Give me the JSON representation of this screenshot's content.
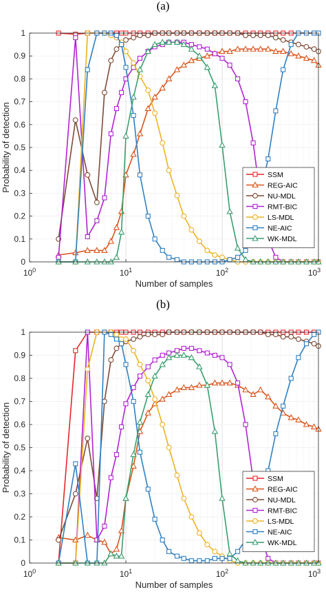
{
  "chart_data": [
    {
      "panel_label": "(a)",
      "type": "line",
      "xlabel": "Number of samples",
      "ylabel": "Probability of detection",
      "xscale": "log",
      "xlim": [
        1,
        1000
      ],
      "ylim": [
        0,
        1
      ],
      "x_ticks": [
        {
          "base": "10",
          "exp": "0"
        },
        {
          "base": "10",
          "exp": "1"
        },
        {
          "base": "10",
          "exp": "2"
        },
        {
          "base": "10",
          "exp": "3"
        }
      ],
      "y_ticks": [
        "0",
        "0.1",
        "0.2",
        "0.3",
        "0.4",
        "0.5",
        "0.6",
        "0.7",
        "0.8",
        "0.9",
        "1"
      ],
      "grid": true,
      "legend_position": "lower-right",
      "x": [
        2,
        3,
        4,
        5,
        6,
        7,
        8,
        9,
        10,
        12,
        14,
        17,
        20,
        24,
        28,
        34,
        40,
        48,
        58,
        70,
        84,
        100,
        120,
        145,
        175,
        210,
        250,
        300,
        360,
        430,
        520,
        620,
        750,
        900,
        1000
      ],
      "series": [
        {
          "name": "SSM",
          "color": "#e8232b",
          "marker": "square",
          "values": [
            1,
            0.995,
            1,
            1,
            1,
            1,
            1,
            1,
            1,
            1,
            1,
            1,
            1,
            1,
            1,
            1,
            1,
            1,
            1,
            1,
            1,
            1,
            1,
            1,
            1,
            1,
            1,
            1,
            1,
            1,
            1,
            1,
            1,
            1,
            1
          ]
        },
        {
          "name": "REG-AIC",
          "color": "#d95319",
          "marker": "triangle",
          "values": [
            0.03,
            0.04,
            0.05,
            0.05,
            0.05,
            0.09,
            0.15,
            0.22,
            0.38,
            0.47,
            0.56,
            0.67,
            0.72,
            0.76,
            0.8,
            0.84,
            0.86,
            0.88,
            0.89,
            0.9,
            0.91,
            0.92,
            0.92,
            0.93,
            0.93,
            0.93,
            0.93,
            0.93,
            0.92,
            0.92,
            0.91,
            0.9,
            0.89,
            0.88,
            0.86
          ]
        },
        {
          "name": "NU-MDL",
          "color": "#7e4a35",
          "marker": "circle",
          "values": [
            0.1,
            0.62,
            0.38,
            0.26,
            0.74,
            0.88,
            0.93,
            0.95,
            0.97,
            0.98,
            0.99,
            0.99,
            1,
            1,
            1,
            1,
            1,
            1,
            1,
            1,
            1,
            1,
            1,
            1,
            0.99,
            0.99,
            0.99,
            0.99,
            0.98,
            0.97,
            0.96,
            0.95,
            0.94,
            0.93,
            0.92
          ]
        },
        {
          "name": "RMT-BIC",
          "color": "#b022d1",
          "marker": "square",
          "values": [
            0.02,
            0.98,
            0.11,
            0.18,
            0.28,
            0.56,
            0.67,
            0.74,
            0.8,
            0.85,
            0.89,
            0.92,
            0.94,
            0.95,
            0.96,
            0.96,
            0.96,
            0.95,
            0.94,
            0.93,
            0.91,
            0.89,
            0.86,
            0.8,
            0.7,
            0.52,
            0.28,
            0.1,
            0.02,
            0,
            0,
            0,
            0,
            0,
            0
          ]
        },
        {
          "name": "LS-MDL",
          "color": "#edb120",
          "marker": "circle",
          "values": [
            0,
            0,
            1,
            1,
            1,
            0.99,
            0.98,
            0.96,
            0.92,
            0.87,
            0.81,
            0.75,
            0.65,
            0.52,
            0.4,
            0.29,
            0.2,
            0.14,
            0.09,
            0.05,
            0.03,
            0.02,
            0.01,
            0,
            0,
            0,
            0,
            0,
            0,
            0,
            0,
            0,
            0,
            0,
            0
          ]
        },
        {
          "name": "NE-AIC",
          "color": "#2f7fc1",
          "marker": "square",
          "values": [
            0,
            0,
            0.84,
            1,
            1,
            1,
            0.99,
            0.95,
            0.85,
            0.64,
            0.38,
            0.2,
            0.1,
            0.05,
            0.02,
            0.01,
            0,
            0,
            0,
            0,
            0,
            0,
            0.01,
            0.02,
            0.05,
            0.12,
            0.3,
            0.45,
            0.66,
            0.84,
            0.95,
            1,
            1,
            1,
            1
          ]
        },
        {
          "name": "WK-MDL",
          "color": "#3a9e6e",
          "marker": "triangle",
          "values": [
            0,
            0,
            0,
            0,
            0,
            0,
            0.02,
            0.13,
            0.55,
            0.72,
            0.84,
            0.92,
            0.95,
            0.96,
            0.96,
            0.96,
            0.95,
            0.93,
            0.9,
            0.85,
            0.77,
            0.51,
            0.22,
            0.06,
            0.01,
            0,
            0,
            0,
            0,
            0,
            0,
            0,
            0,
            0,
            0
          ]
        }
      ]
    },
    {
      "panel_label": "(b)",
      "type": "line",
      "xlabel": "Number of samples",
      "ylabel": "Probability of detection",
      "xscale": "log",
      "xlim": [
        1,
        1000
      ],
      "ylim": [
        0,
        1
      ],
      "x_ticks": [
        {
          "base": "10",
          "exp": "0"
        },
        {
          "base": "10",
          "exp": "1"
        },
        {
          "base": "10",
          "exp": "2"
        },
        {
          "base": "10",
          "exp": "3"
        }
      ],
      "y_ticks": [
        "0",
        "0.1",
        "0.2",
        "0.3",
        "0.4",
        "0.5",
        "0.6",
        "0.7",
        "0.8",
        "0.9",
        "1"
      ],
      "grid": true,
      "legend_position": "lower-right",
      "x": [
        2,
        3,
        4,
        5,
        6,
        7,
        8,
        9,
        10,
        12,
        14,
        17,
        20,
        24,
        28,
        34,
        40,
        48,
        58,
        70,
        84,
        100,
        120,
        145,
        175,
        210,
        250,
        300,
        360,
        430,
        520,
        620,
        750,
        900,
        1000
      ],
      "series": [
        {
          "name": "SSM",
          "color": "#e8232b",
          "marker": "square",
          "values": [
            0,
            0.92,
            1,
            1,
            1,
            1,
            1,
            1,
            1,
            1,
            1,
            1,
            1,
            1,
            1,
            1,
            1,
            1,
            1,
            1,
            1,
            1,
            1,
            1,
            1,
            1,
            1,
            1,
            1,
            1,
            1,
            1,
            1,
            1,
            1
          ]
        },
        {
          "name": "REG-AIC",
          "color": "#d95319",
          "marker": "triangle",
          "values": [
            0.11,
            0.1,
            0.12,
            0.1,
            0.09,
            0.04,
            0.06,
            0.14,
            0.28,
            0.42,
            0.57,
            0.65,
            0.69,
            0.71,
            0.73,
            0.75,
            0.76,
            0.76,
            0.77,
            0.77,
            0.78,
            0.78,
            0.78,
            0.77,
            0.75,
            0.73,
            0.75,
            0.72,
            0.68,
            0.65,
            0.63,
            0.62,
            0.6,
            0.59,
            0.58
          ]
        },
        {
          "name": "NU-MDL",
          "color": "#7e4a35",
          "marker": "circle",
          "values": [
            0.1,
            0.3,
            0.54,
            0.28,
            0.7,
            0.88,
            0.93,
            0.95,
            0.96,
            0.97,
            0.98,
            0.99,
            0.99,
            0.99,
            1,
            1,
            1,
            1,
            1,
            1,
            1,
            1,
            1,
            1,
            1,
            1,
            1,
            0.99,
            0.99,
            0.98,
            0.98,
            0.97,
            0.96,
            0.95,
            0.94
          ]
        },
        {
          "name": "RMT-BIC",
          "color": "#b022d1",
          "marker": "square",
          "values": [
            0,
            0,
            1,
            0.1,
            0.16,
            0.37,
            0.47,
            0.59,
            0.69,
            0.76,
            0.81,
            0.85,
            0.88,
            0.9,
            0.91,
            0.92,
            0.93,
            0.93,
            0.92,
            0.91,
            0.9,
            0.89,
            0.86,
            0.78,
            0.6,
            0.36,
            0.12,
            0.02,
            0,
            0,
            0,
            0,
            0,
            0,
            0
          ]
        },
        {
          "name": "LS-MDL",
          "color": "#edb120",
          "marker": "circle",
          "values": [
            0,
            0,
            0.84,
            1,
            1,
            1,
            0.99,
            0.97,
            0.97,
            0.92,
            0.86,
            0.79,
            0.71,
            0.6,
            0.5,
            0.38,
            0.28,
            0.2,
            0.13,
            0.08,
            0.05,
            0.03,
            0.01,
            0,
            0,
            0,
            0,
            0,
            0,
            0,
            0,
            0,
            0,
            0,
            0
          ]
        },
        {
          "name": "NE-AIC",
          "color": "#2f7fc1",
          "marker": "square",
          "values": [
            0,
            0.43,
            0,
            0,
            1,
            0.99,
            0.97,
            0.95,
            0.86,
            0.7,
            0.48,
            0.32,
            0.19,
            0.1,
            0.05,
            0.03,
            0.02,
            0.01,
            0.01,
            0.01,
            0.02,
            0.02,
            0.02,
            0.05,
            0.1,
            0.18,
            0.28,
            0.4,
            0.56,
            0.68,
            0.8,
            0.89,
            0.95,
            0.99,
            1
          ]
        },
        {
          "name": "WK-MDL",
          "color": "#3a9e6e",
          "marker": "triangle",
          "values": [
            0,
            0,
            0,
            0,
            0,
            0.04,
            0.03,
            0.03,
            0.28,
            0.47,
            0.61,
            0.73,
            0.81,
            0.86,
            0.89,
            0.9,
            0.9,
            0.89,
            0.85,
            0.77,
            0.57,
            0.28,
            0.04,
            0.01,
            0,
            0,
            0,
            0,
            0,
            0,
            0,
            0,
            0,
            0,
            0
          ]
        }
      ]
    }
  ]
}
